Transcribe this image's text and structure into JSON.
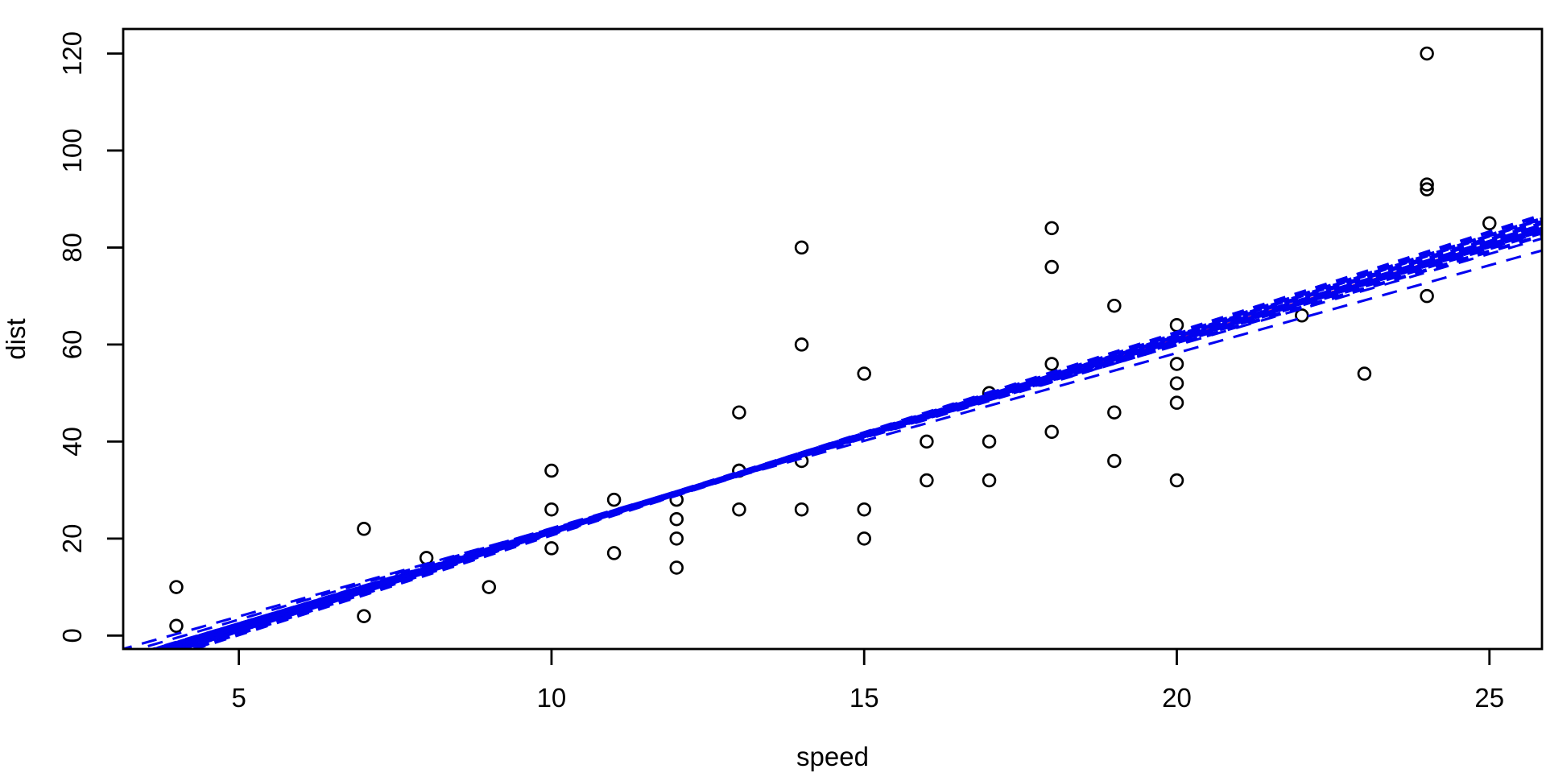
{
  "figure": {
    "background": "#ffffff",
    "axis_color": "#000000",
    "point_color": "#000000",
    "fit_color": "#d8234c",
    "bootstrap_color": "#0202f0"
  },
  "chart_data": {
    "type": "scatter",
    "title": "",
    "xlabel": "speed",
    "ylabel": "dist",
    "xlim": [
      3.15,
      25.84
    ],
    "ylim": [
      -2.77,
      125.06
    ],
    "x_ticks": [
      5,
      10,
      15,
      20,
      25
    ],
    "y_ticks": [
      0,
      20,
      40,
      60,
      80,
      100,
      120
    ],
    "grid": false,
    "legend": "none",
    "points": {
      "symbol": "open-circle",
      "x": [
        4,
        4,
        7,
        7,
        8,
        9,
        10,
        10,
        10,
        11,
        11,
        12,
        12,
        12,
        12,
        13,
        13,
        13,
        13,
        14,
        14,
        14,
        14,
        15,
        15,
        15,
        16,
        16,
        17,
        17,
        17,
        18,
        18,
        18,
        18,
        19,
        19,
        19,
        20,
        20,
        20,
        20,
        20,
        22,
        23,
        24,
        24,
        24,
        24,
        25
      ],
      "y": [
        2,
        10,
        4,
        22,
        16,
        10,
        18,
        26,
        34,
        17,
        28,
        14,
        20,
        24,
        28,
        26,
        34,
        34,
        46,
        26,
        36,
        60,
        80,
        20,
        26,
        54,
        32,
        40,
        32,
        40,
        50,
        42,
        56,
        76,
        84,
        36,
        46,
        68,
        32,
        48,
        52,
        56,
        64,
        66,
        54,
        70,
        92,
        93,
        120,
        85
      ]
    },
    "regression_fit_line": {
      "slope": 3.932,
      "intercept": -17.579,
      "line_style": "solid",
      "color": "#d8234c"
    },
    "bootstrap_lines": {
      "line_style": "dashed",
      "color": "#0202f0",
      "bundle": [
        [
          3.84,
          -16.79
        ],
        [
          3.87,
          -16.95
        ],
        [
          3.89,
          -17.06
        ],
        [
          3.91,
          -17.76
        ],
        [
          3.93,
          -17.77
        ],
        [
          3.95,
          -17.78
        ],
        [
          3.96,
          -18.43
        ],
        [
          3.98,
          -18.34
        ],
        [
          4.0,
          -18.35
        ],
        [
          4.02,
          -19.26
        ],
        [
          4.05,
          -19.32
        ],
        [
          4.08,
          -19.48
        ],
        [
          4.11,
          -20.34
        ],
        [
          4.14,
          -20.31
        ]
      ],
      "stray": [
        [
          3.77,
          -15.56
        ],
        [
          3.62,
          -14.15
        ]
      ]
    }
  }
}
